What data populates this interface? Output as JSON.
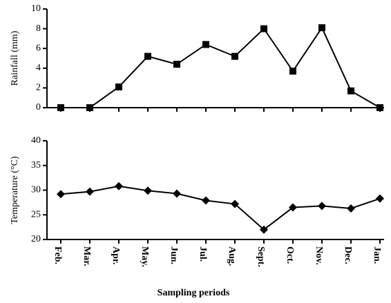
{
  "chart_data": [
    {
      "type": "line",
      "ylabel": "Rainfall (mm)",
      "ylim": [
        0,
        10
      ],
      "yticks": [
        0,
        2,
        4,
        6,
        8,
        10
      ],
      "color": "#000000",
      "marker": "square",
      "values": [
        0,
        0,
        2.1,
        5.2,
        4.4,
        6.4,
        5.2,
        8.0,
        3.7,
        8.1,
        1.7,
        0
      ]
    },
    {
      "type": "line",
      "ylabel": "Temperature (°C)",
      "xlabel": "Sampling periods",
      "ylim": [
        20,
        40
      ],
      "yticks": [
        20,
        25,
        30,
        35,
        40
      ],
      "color": "#000000",
      "marker": "diamond",
      "categories": [
        "Feb.",
        "Mar.",
        "Apr.",
        "May.",
        "Jun.",
        "Jul.",
        "Aug.",
        "Sept.",
        "Oct.",
        "Nov.",
        "Dec.",
        "Jan."
      ],
      "values": [
        29.2,
        29.7,
        30.8,
        29.9,
        29.3,
        27.9,
        27.2,
        22.0,
        26.5,
        26.8,
        26.3,
        28.3
      ]
    }
  ]
}
